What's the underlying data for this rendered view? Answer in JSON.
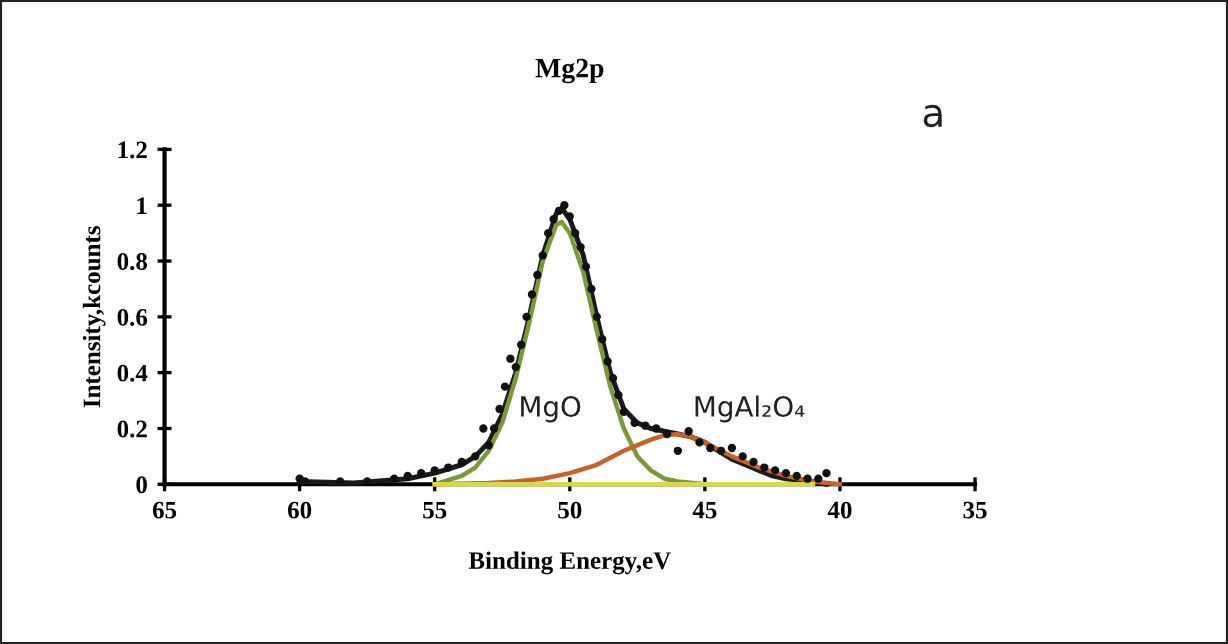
{
  "chart_data": {
    "type": "line",
    "title": "Mg2p",
    "xlabel": "Binding Energy,eV",
    "ylabel": "Intensity,kcounts",
    "xlim": [
      65,
      35
    ],
    "xticks": [
      65,
      60,
      55,
      50,
      45,
      40,
      35
    ],
    "ylim": [
      0,
      1.2
    ],
    "yticks": [
      0,
      0.2,
      0.4,
      0.6,
      0.8,
      1,
      1.2
    ],
    "grid": false,
    "legend": false,
    "annotations": [
      "a",
      "MgO",
      "MgAl₂O₄"
    ],
    "series": [
      {
        "type": "scatter",
        "color": "#111111",
        "marker": "circle",
        "x": [
          60,
          59.8,
          58.5,
          57.5,
          56.5,
          56,
          55.5,
          55,
          54.5,
          54,
          53.5,
          53.2,
          53,
          52.8,
          52.6,
          52.4,
          52.2,
          52,
          51.8,
          51.6,
          51.4,
          51.2,
          51,
          50.8,
          50.6,
          50.4,
          50.2,
          50,
          49.8,
          49.6,
          49.4,
          49.2,
          49,
          48.8,
          48.6,
          48.4,
          48.2,
          48,
          47.6,
          47.2,
          46.8,
          46.4,
          46,
          45.6,
          45.2,
          44.8,
          44.4,
          44,
          43.6,
          43.2,
          42.8,
          42.4,
          42,
          41.6,
          41.2,
          40.8,
          40.5
        ],
        "values": [
          0.02,
          0.01,
          0.01,
          0.01,
          0.02,
          0.03,
          0.04,
          0.05,
          0.06,
          0.08,
          0.1,
          0.2,
          0.14,
          0.2,
          0.27,
          0.35,
          0.45,
          0.42,
          0.5,
          0.6,
          0.68,
          0.75,
          0.82,
          0.9,
          0.95,
          0.98,
          1.0,
          0.96,
          0.9,
          0.85,
          0.78,
          0.7,
          0.6,
          0.52,
          0.44,
          0.38,
          0.32,
          0.26,
          0.22,
          0.21,
          0.2,
          0.18,
          0.12,
          0.19,
          0.15,
          0.13,
          0.12,
          0.13,
          0.1,
          0.08,
          0.06,
          0.05,
          0.04,
          0.03,
          0.02,
          0.02,
          0.04
        ]
      },
      {
        "color": "#1a1a1a",
        "x": [
          60,
          58,
          56,
          55,
          54,
          53.5,
          53,
          52.5,
          52,
          51.5,
          51,
          50.5,
          50.3,
          50,
          49.5,
          49,
          48.5,
          48,
          47.5,
          47,
          46.5,
          46,
          45.5,
          45,
          44.5,
          44,
          43.5,
          43,
          42.5,
          42,
          41,
          40.5
        ],
        "values": [
          0.01,
          0.005,
          0.02,
          0.04,
          0.07,
          0.1,
          0.15,
          0.25,
          0.4,
          0.6,
          0.82,
          0.97,
          0.99,
          0.95,
          0.82,
          0.6,
          0.4,
          0.27,
          0.22,
          0.2,
          0.19,
          0.18,
          0.17,
          0.15,
          0.12,
          0.09,
          0.07,
          0.05,
          0.03,
          0.02,
          0.01,
          0
        ]
      },
      {
        "color": "#7a9a3a",
        "x": [
          55,
          54,
          53.5,
          53,
          52.5,
          52,
          51.5,
          51,
          50.5,
          50.3,
          50,
          49.5,
          49,
          48.5,
          48,
          47.5,
          47,
          46.5,
          46,
          45
        ],
        "values": [
          0,
          0.03,
          0.06,
          0.12,
          0.22,
          0.38,
          0.58,
          0.8,
          0.93,
          0.94,
          0.9,
          0.76,
          0.55,
          0.35,
          0.2,
          0.1,
          0.05,
          0.02,
          0.01,
          0
        ]
      },
      {
        "color": "#c8622a",
        "x": [
          55,
          53,
          52,
          51,
          50,
          49,
          48,
          47,
          46.5,
          46,
          45.5,
          45,
          44,
          43,
          42,
          41,
          40
        ],
        "values": [
          0,
          0.005,
          0.01,
          0.02,
          0.04,
          0.07,
          0.12,
          0.16,
          0.175,
          0.18,
          0.17,
          0.15,
          0.1,
          0.06,
          0.03,
          0.01,
          0
        ]
      },
      {
        "color": "#d8d84a",
        "x": [
          55,
          41
        ],
        "values": [
          0,
          0
        ]
      }
    ]
  }
}
